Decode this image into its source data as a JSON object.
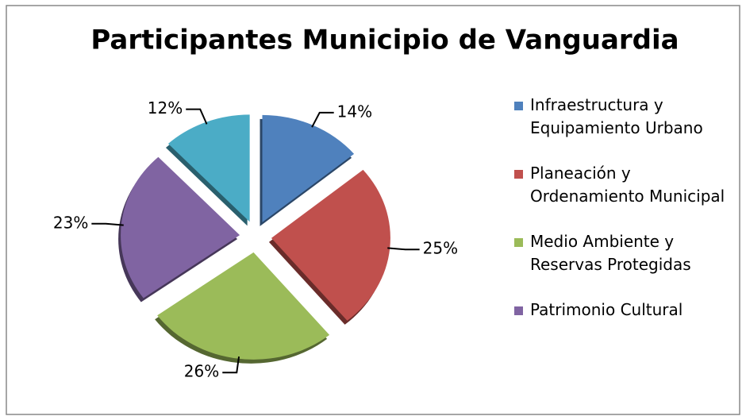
{
  "chart_data": {
    "type": "pie",
    "title": "Participantes Municipio de Vanguardia",
    "categories": [
      "Infraestructura y Equipamiento Urbano",
      "Planeación y Ordenamiento Municipal",
      "Medio Ambiente y Reservas Protegidas",
      "Patrimonio Cultural",
      null
    ],
    "values": [
      14,
      25,
      26,
      23,
      12
    ],
    "value_labels": [
      "14%",
      "25%",
      "26%",
      "23%",
      "12%"
    ],
    "colors": [
      "#4f81bd",
      "#c0504d",
      "#9bbb59",
      "#8064a2",
      "#4bacc6"
    ],
    "legend": "right"
  }
}
